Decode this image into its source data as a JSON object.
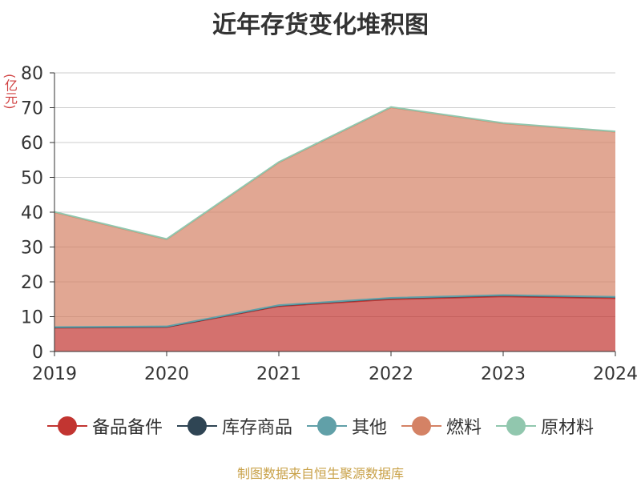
{
  "chart_data": {
    "type": "area",
    "stacked": true,
    "title": "近年存货变化堆积图",
    "ylabel": "(亿元)",
    "xlabel": "",
    "categories": [
      "2019",
      "2020",
      "2021",
      "2022",
      "2023",
      "2024"
    ],
    "ylim": [
      0,
      80
    ],
    "yticks": [
      0,
      10,
      20,
      30,
      40,
      50,
      60,
      70,
      80
    ],
    "grid": true,
    "legend_position": "bottom",
    "series": [
      {
        "name": "备品备件",
        "color": "#c23531",
        "values": [
          6.8,
          7.0,
          13.0,
          15.0,
          15.8,
          15.3
        ]
      },
      {
        "name": "库存商品",
        "color": "#2f4554",
        "values": [
          0.1,
          0.1,
          0.2,
          0.3,
          0.3,
          0.3
        ]
      },
      {
        "name": "其他",
        "color": "#61a0a8",
        "values": [
          0.1,
          0.1,
          0.1,
          0.1,
          0.1,
          0.1
        ]
      },
      {
        "name": "燃料",
        "color": "#d48265",
        "values": [
          33.0,
          25.0,
          41.0,
          54.7,
          49.3,
          47.4
        ]
      },
      {
        "name": "原材料",
        "color": "#91c7ae",
        "values": [
          0.1,
          0.1,
          0.1,
          0.1,
          0.1,
          0.1
        ]
      }
    ]
  },
  "footer": "制图数据来自恒生聚源数据库"
}
